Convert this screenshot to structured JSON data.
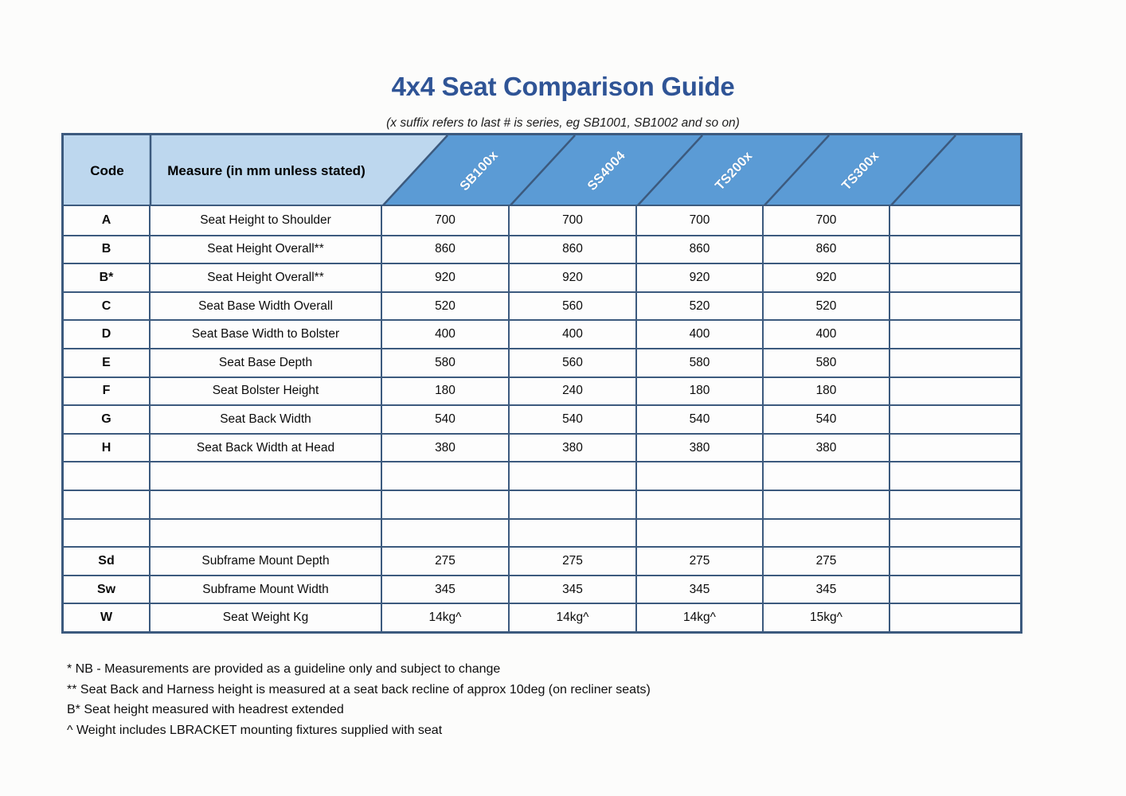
{
  "page": {
    "title": "4x4 Seat Comparison Guide",
    "subtitle": "(x suffix refers to last # is series, eg SB1001, SB1002 and so on)"
  },
  "table": {
    "header": {
      "code": "Code",
      "measure": "Measure (in mm unless stated)",
      "products": [
        "SB100x",
        "SS4004",
        "TS200x",
        "TS300x"
      ]
    },
    "rows": [
      {
        "code": "A",
        "measure": "Seat Height to Shoulder",
        "values": [
          "700",
          "700",
          "700",
          "700",
          ""
        ]
      },
      {
        "code": "B",
        "measure": "Seat Height Overall**",
        "values": [
          "860",
          "860",
          "860",
          "860",
          ""
        ]
      },
      {
        "code": "B*",
        "measure": "Seat Height Overall**",
        "values": [
          "920",
          "920",
          "920",
          "920",
          ""
        ]
      },
      {
        "code": "C",
        "measure": "Seat Base Width Overall",
        "values": [
          "520",
          "560",
          "520",
          "520",
          ""
        ]
      },
      {
        "code": "D",
        "measure": "Seat Base Width to Bolster",
        "values": [
          "400",
          "400",
          "400",
          "400",
          ""
        ]
      },
      {
        "code": "E",
        "measure": "Seat Base Depth",
        "values": [
          "580",
          "560",
          "580",
          "580",
          ""
        ]
      },
      {
        "code": "F",
        "measure": "Seat Bolster Height",
        "values": [
          "180",
          "240",
          "180",
          "180",
          ""
        ]
      },
      {
        "code": "G",
        "measure": "Seat Back Width",
        "values": [
          "540",
          "540",
          "540",
          "540",
          ""
        ]
      },
      {
        "code": "H",
        "measure": "Seat Back Width at Head",
        "values": [
          "380",
          "380",
          "380",
          "380",
          ""
        ]
      },
      {
        "code": "",
        "measure": "",
        "values": [
          "",
          "",
          "",
          "",
          ""
        ]
      },
      {
        "code": "",
        "measure": "",
        "values": [
          "",
          "",
          "",
          "",
          ""
        ]
      },
      {
        "code": "",
        "measure": "",
        "values": [
          "",
          "",
          "",
          "",
          ""
        ]
      },
      {
        "code": "Sd",
        "measure": "Subframe Mount Depth",
        "values": [
          "275",
          "275",
          "275",
          "275",
          ""
        ]
      },
      {
        "code": "Sw",
        "measure": "Subframe Mount Width",
        "values": [
          "345",
          "345",
          "345",
          "345",
          ""
        ]
      },
      {
        "code": "W",
        "measure": "Seat Weight Kg",
        "values": [
          "14kg^",
          "14kg^",
          "14kg^",
          "15kg^",
          ""
        ]
      }
    ]
  },
  "footnotes": [
    "* NB - Measurements are provided as a guideline only and subject to change",
    "** Seat Back and Harness height is measured at a seat back recline of approx 10deg (on recliner seats)",
    "B* Seat height measured with headrest extended",
    "^ Weight includes LBRACKET mounting fixtures supplied with seat"
  ],
  "colors": {
    "title_blue": "#2F5496",
    "header_light_blue": "#BDD7EE",
    "header_dark_blue": "#5B9BD5",
    "border_blue": "#3C5A7E"
  }
}
